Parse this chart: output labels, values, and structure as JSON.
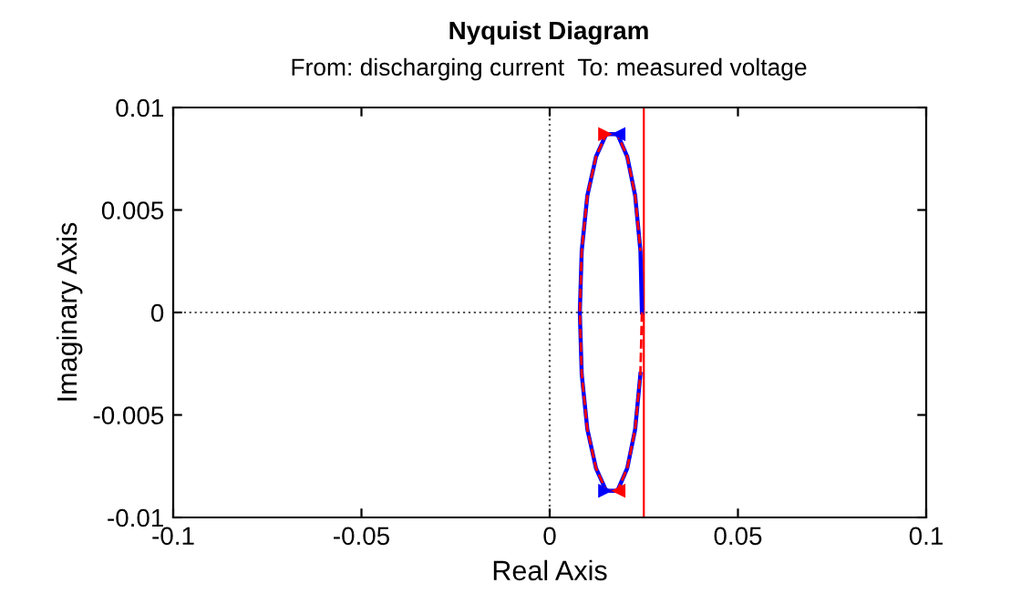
{
  "chart_data": {
    "type": "line",
    "title": "Nyquist Diagram",
    "subtitle": "From: discharging current  To: measured voltage",
    "xlabel": "Real Axis",
    "ylabel": "Imaginary Axis",
    "series": [
      {
        "color": "#0000ff",
        "line_style": "solid",
        "x": [
          0.0245,
          0.0241,
          0.0227,
          0.0206,
          0.018,
          0.015,
          0.0123,
          0.01,
          0.0085,
          0.008,
          0.0085,
          0.01,
          0.0123,
          0.015,
          0.018,
          0.0206,
          0.0227,
          0.0241
        ],
        "values": [
          0,
          0.003,
          0.0057,
          0.0076,
          0.0087,
          0.0087,
          0.0076,
          0.0057,
          0.003,
          0,
          -0.003,
          -0.0057,
          -0.0076,
          -0.0087,
          -0.0087,
          -0.0076,
          -0.0057,
          -0.003
        ]
      },
      {
        "color": "#ff0000",
        "line_style": "dashed",
        "x": [
          0.0245,
          0.0241,
          0.0227,
          0.0206,
          0.018,
          0.015,
          0.0123,
          0.01,
          0.0085,
          0.008,
          0.0085,
          0.01,
          0.0123,
          0.015,
          0.018,
          0.0206,
          0.0227,
          0.0241
        ],
        "values": [
          0,
          -0.003,
          -0.0057,
          -0.0076,
          -0.0087,
          -0.0087,
          -0.0076,
          -0.0057,
          -0.003,
          0,
          0.003,
          0.0057,
          0.0076,
          0.0087,
          0.0087,
          0.0076,
          0.0057,
          0.003
        ]
      }
    ],
    "xlim": [
      -0.1,
      0.1
    ],
    "xticks": [
      -0.1,
      -0.05,
      0,
      0.05,
      0.1
    ],
    "ylim": [
      -0.01,
      0.01
    ],
    "yticks": [
      -0.01,
      -0.005,
      0,
      0.005,
      0.01
    ],
    "ref_lines": [
      {
        "axis": "x",
        "value": 0,
        "color": "#555555",
        "line_style": "dotted"
      },
      {
        "axis": "y",
        "value": 0,
        "color": "#555555",
        "line_style": "dotted"
      },
      {
        "axis": "x",
        "value": 0.025,
        "color": "#ff0000",
        "line_style": "solid"
      }
    ],
    "grid": false,
    "marker": "none"
  }
}
